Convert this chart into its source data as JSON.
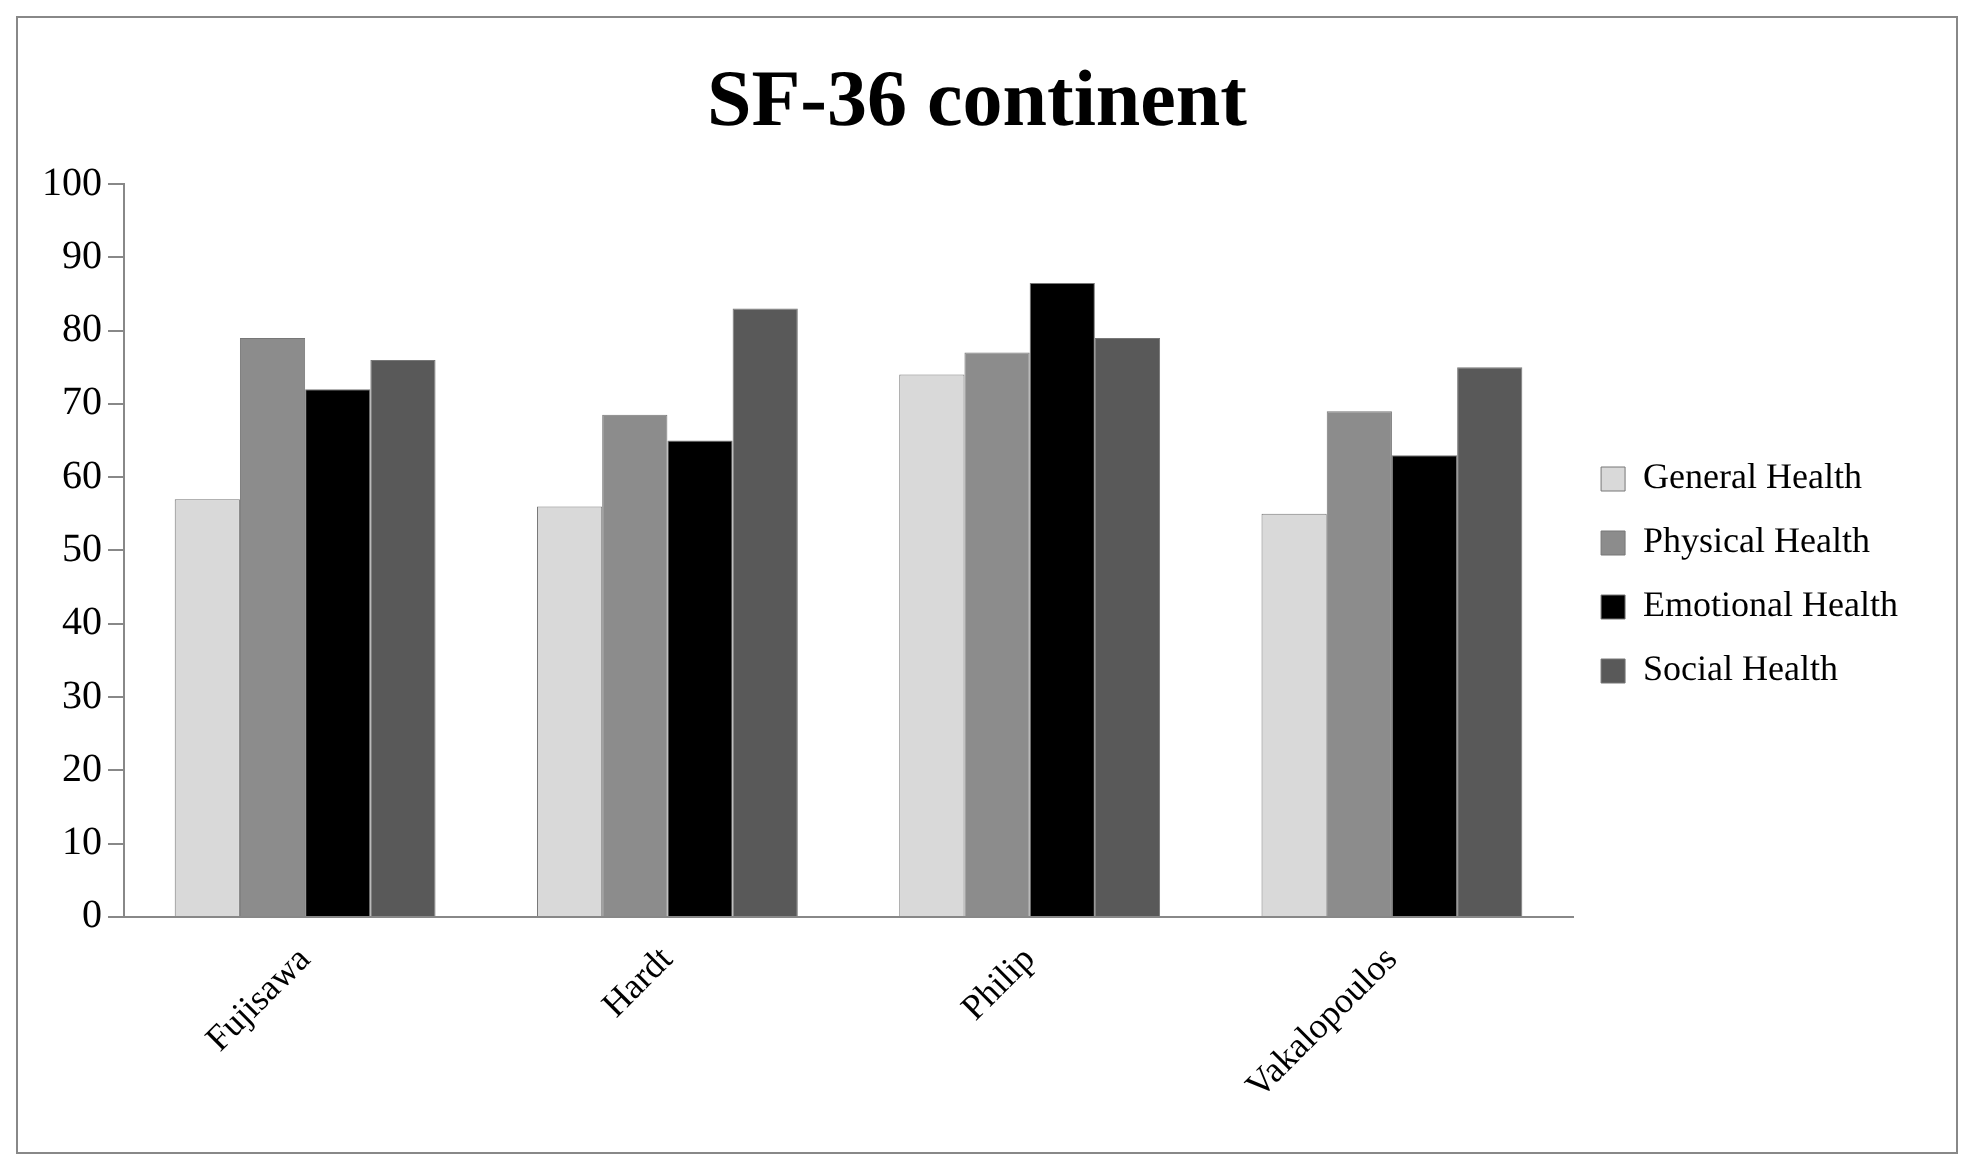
{
  "chart_data": {
    "type": "bar",
    "title": "SF-36 continent",
    "categories": [
      "Fujisawa",
      "Hardt",
      "Philip",
      "Vakalopoulos"
    ],
    "series": [
      {
        "name": "General Health",
        "color": "#d9d9d9",
        "values": [
          57,
          56,
          74,
          55
        ]
      },
      {
        "name": "Physical Health",
        "color": "#8c8c8c",
        "values": [
          79,
          68.5,
          77,
          69
        ]
      },
      {
        "name": "Emotional Health",
        "color": "#000000",
        "values": [
          72,
          65,
          86.5,
          63
        ]
      },
      {
        "name": "Social Health",
        "color": "#595959",
        "values": [
          76,
          83,
          79,
          75
        ]
      }
    ],
    "ylim": [
      0,
      100
    ],
    "yticks": [
      0,
      10,
      20,
      30,
      40,
      50,
      60,
      70,
      80,
      90,
      100
    ],
    "grid": false,
    "legend": "right"
  }
}
